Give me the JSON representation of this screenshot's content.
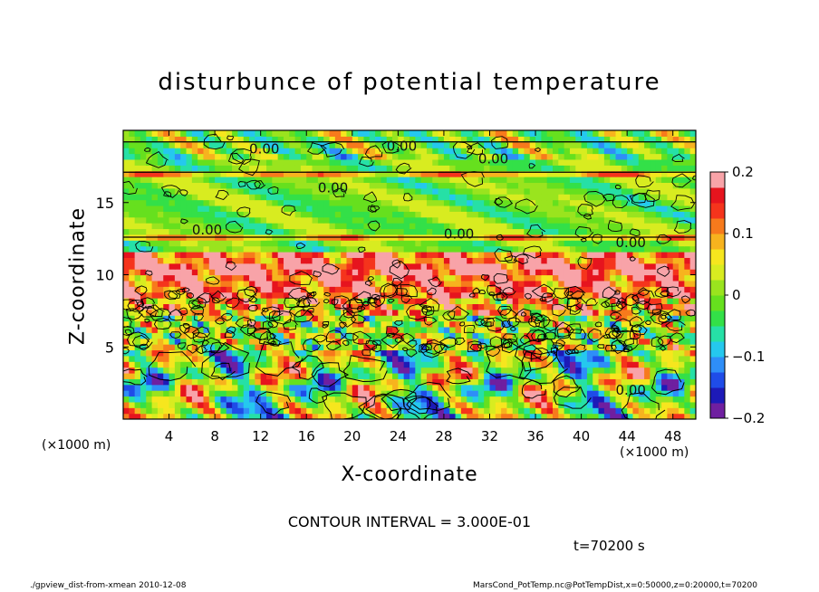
{
  "chart_data": {
    "type": "heatmap",
    "title": "disturbunce of potential temperature",
    "xlabel": "X-coordinate",
    "ylabel": "Z-coordinate",
    "x_unit": "(×1000 m)",
    "y_unit": "(×1000 m)",
    "xlim": [
      0,
      50
    ],
    "ylim": [
      0,
      20
    ],
    "x_ticks": [
      4,
      8,
      12,
      16,
      20,
      24,
      28,
      32,
      36,
      40,
      44,
      48
    ],
    "y_ticks": [
      5,
      10,
      15
    ],
    "colorbar": {
      "range": [
        -0.2,
        0.2
      ],
      "ticks": [
        -0.2,
        -0.1,
        0,
        0.1,
        0.2
      ],
      "tick_labels": [
        "−0.2",
        "−0.1",
        "0",
        "0.1",
        "0.2"
      ],
      "colors": [
        "#6f1fa0",
        "#1d1ab8",
        "#1f4ce8",
        "#2e8ef8",
        "#25c8ee",
        "#26e0a6",
        "#33e048",
        "#66e01e",
        "#9ae41e",
        "#d8ec20",
        "#f6e61e",
        "#f7b31e",
        "#f77a1c",
        "#f5341c",
        "#e6141e",
        "#f8a3a8"
      ]
    },
    "contour_labels": [
      "0.00",
      "0.00",
      "0.00",
      "0.00",
      "0.00",
      "0.00",
      "0.00",
      "0.00"
    ],
    "contour_interval": "CONTOUR INTERVAL = 3.000E-01",
    "time_label": "t=70200 s",
    "footer_left": "./gpview_dist-from-xmean   2010-12-08",
    "footer_right": "MarsCond_PotTemp.nc@PotTempDist,x=0:50000,z=0:20000,t=70200"
  }
}
